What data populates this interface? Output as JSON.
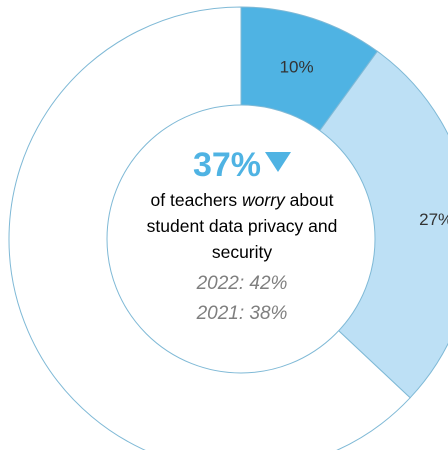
{
  "chart_data": {
    "type": "pie",
    "categories": [
      "10%",
      "27%",
      ""
    ],
    "values": [
      10,
      27,
      63
    ],
    "colors": [
      "#4fb3e3",
      "#bde0f5",
      "#ffffff"
    ],
    "outline_color": "#7fb9d6",
    "center": {
      "headline": "37%",
      "headline_icon": "down-triangle-icon",
      "line1_prefix": "of teachers ",
      "line1_emphasis": "worry",
      "line1_suffix": " about",
      "line2": "student data privacy and",
      "line3": "security",
      "prior_2022": "2022: 42%",
      "prior_2021": "2021: 38%"
    }
  }
}
